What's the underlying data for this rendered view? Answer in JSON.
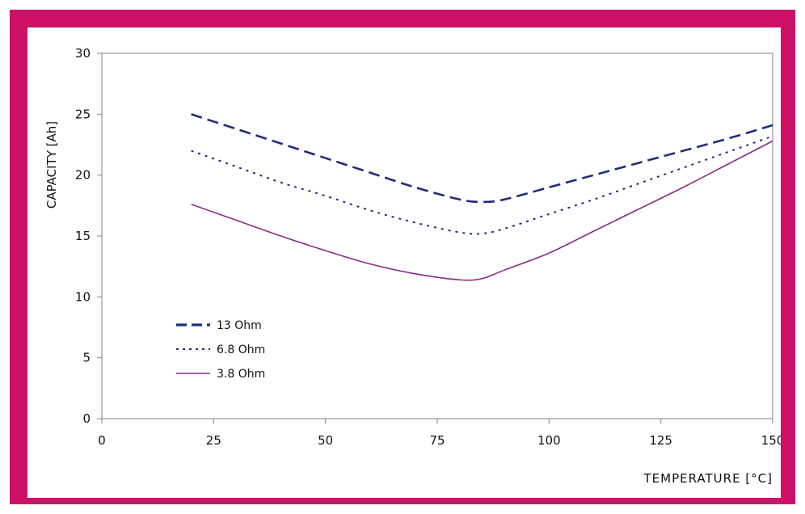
{
  "chart_data": {
    "type": "line",
    "title": "",
    "xlabel": "TEMPERATURE [°C]",
    "ylabel": "CAPACITY [Ah]",
    "xlim": [
      0,
      150
    ],
    "ylim": [
      0,
      30
    ],
    "xticks": [
      0,
      25,
      50,
      75,
      100,
      125,
      150
    ],
    "yticks": [
      0,
      5,
      10,
      15,
      20,
      25,
      30
    ],
    "grid": false,
    "legend_position": "left",
    "series": [
      {
        "name": "13 Ohm",
        "style": "dashed",
        "color": "#1f2f7a",
        "x": [
          20,
          30,
          40,
          50,
          60,
          70,
          80,
          85,
          90,
          100,
          110,
          120,
          130,
          140,
          150
        ],
        "y": [
          25.0,
          23.8,
          22.6,
          21.4,
          20.2,
          19.0,
          18.0,
          17.8,
          18.0,
          19.0,
          20.0,
          21.0,
          22.0,
          23.0,
          24.1
        ]
      },
      {
        "name": "6.8 Ohm",
        "style": "dotted",
        "color": "#1f2f7a",
        "x": [
          20,
          30,
          40,
          50,
          60,
          70,
          80,
          85,
          90,
          100,
          110,
          120,
          130,
          140,
          150
        ],
        "y": [
          22.0,
          20.7,
          19.4,
          18.3,
          17.1,
          16.1,
          15.3,
          15.2,
          15.6,
          16.8,
          18.0,
          19.3,
          20.6,
          21.9,
          23.2
        ]
      },
      {
        "name": "3.8 Ohm",
        "style": "solid",
        "color": "#8b2b86",
        "x": [
          20,
          30,
          40,
          50,
          60,
          70,
          80,
          85,
          90,
          100,
          110,
          120,
          130,
          140,
          150
        ],
        "y": [
          17.6,
          16.3,
          15.0,
          13.8,
          12.7,
          11.9,
          11.4,
          11.5,
          12.2,
          13.6,
          15.4,
          17.2,
          19.0,
          20.9,
          22.8
        ]
      }
    ]
  }
}
